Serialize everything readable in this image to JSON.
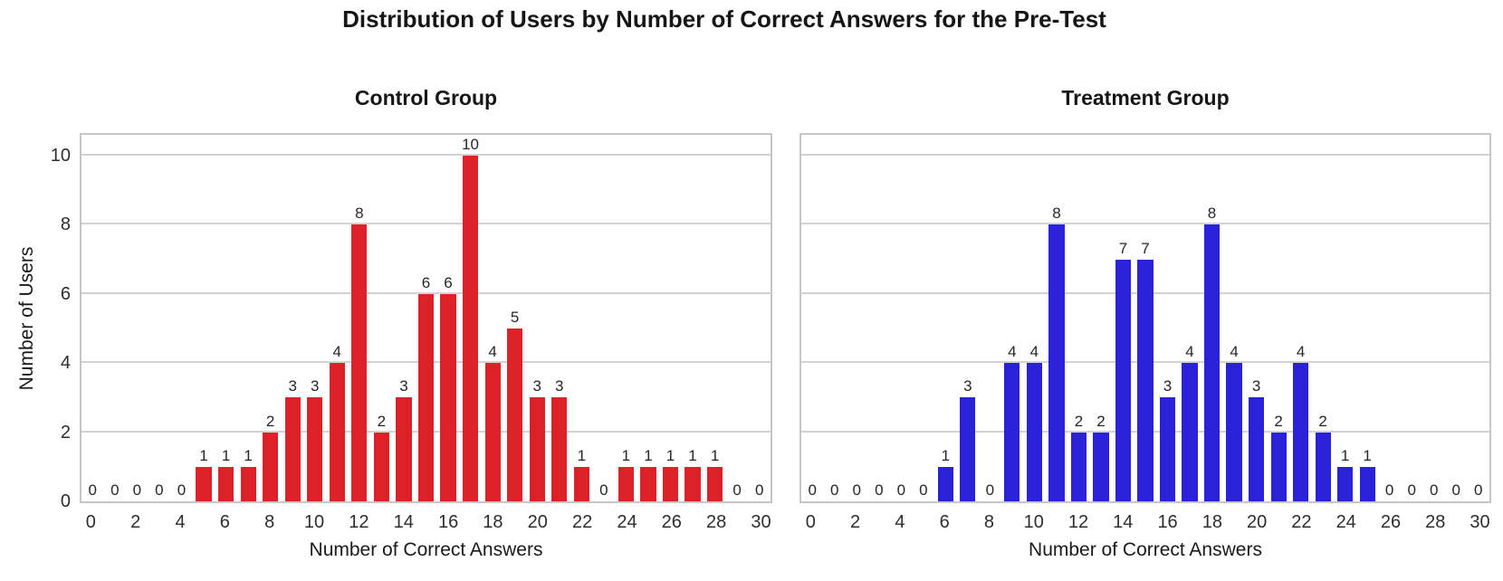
{
  "figure": {
    "title": "Distribution of Users by Number of Correct Answers for the Pre-Test"
  },
  "chart_data": [
    {
      "type": "bar",
      "title": "Control Group",
      "xlabel": "Number of Correct Answers",
      "ylabel": "Number of Users",
      "bar_color": "#dc2127",
      "categories": [
        0,
        1,
        2,
        3,
        4,
        5,
        6,
        7,
        8,
        9,
        10,
        11,
        12,
        13,
        14,
        15,
        16,
        17,
        18,
        19,
        20,
        21,
        22,
        23,
        24,
        25,
        26,
        27,
        28,
        29,
        30
      ],
      "values": [
        0,
        0,
        0,
        0,
        0,
        1,
        1,
        1,
        2,
        3,
        3,
        4,
        8,
        2,
        3,
        6,
        6,
        10,
        4,
        5,
        3,
        3,
        1,
        0,
        1,
        1,
        1,
        1,
        1,
        0,
        0
      ],
      "x_tick_labels": [
        0,
        2,
        4,
        6,
        8,
        10,
        12,
        14,
        16,
        18,
        20,
        22,
        24,
        26,
        28,
        30
      ],
      "x_tick_step": 2,
      "y_ticks": [
        0,
        2,
        4,
        6,
        8,
        10
      ],
      "ylim": [
        0,
        10.6
      ],
      "grid": "horizontal",
      "value_labels": true,
      "show_y_tick_labels": true
    },
    {
      "type": "bar",
      "title": "Treatment Group",
      "xlabel": "Number of Correct Answers",
      "ylabel": "",
      "bar_color": "#2a22d9",
      "categories": [
        0,
        1,
        2,
        3,
        4,
        5,
        6,
        7,
        8,
        9,
        10,
        11,
        12,
        13,
        14,
        15,
        16,
        17,
        18,
        19,
        20,
        21,
        22,
        23,
        24,
        25,
        26,
        27,
        28,
        29,
        30
      ],
      "values": [
        0,
        0,
        0,
        0,
        0,
        0,
        1,
        3,
        0,
        4,
        4,
        8,
        2,
        2,
        7,
        7,
        3,
        4,
        8,
        4,
        3,
        2,
        4,
        2,
        1,
        1,
        0,
        0,
        0,
        0,
        0
      ],
      "x_tick_labels": [
        0,
        2,
        4,
        6,
        8,
        10,
        12,
        14,
        16,
        18,
        20,
        22,
        24,
        26,
        28,
        30
      ],
      "x_tick_step": 2,
      "y_ticks": [
        0,
        2,
        4,
        6,
        8,
        10
      ],
      "ylim": [
        0,
        10.6
      ],
      "grid": "horizontal",
      "value_labels": true,
      "show_y_tick_labels": false
    }
  ],
  "style": {
    "grid_color": "#d2d2d2",
    "spine_color": "#c6c6c6",
    "text_color": "#262626",
    "background": "#ffffff"
  }
}
